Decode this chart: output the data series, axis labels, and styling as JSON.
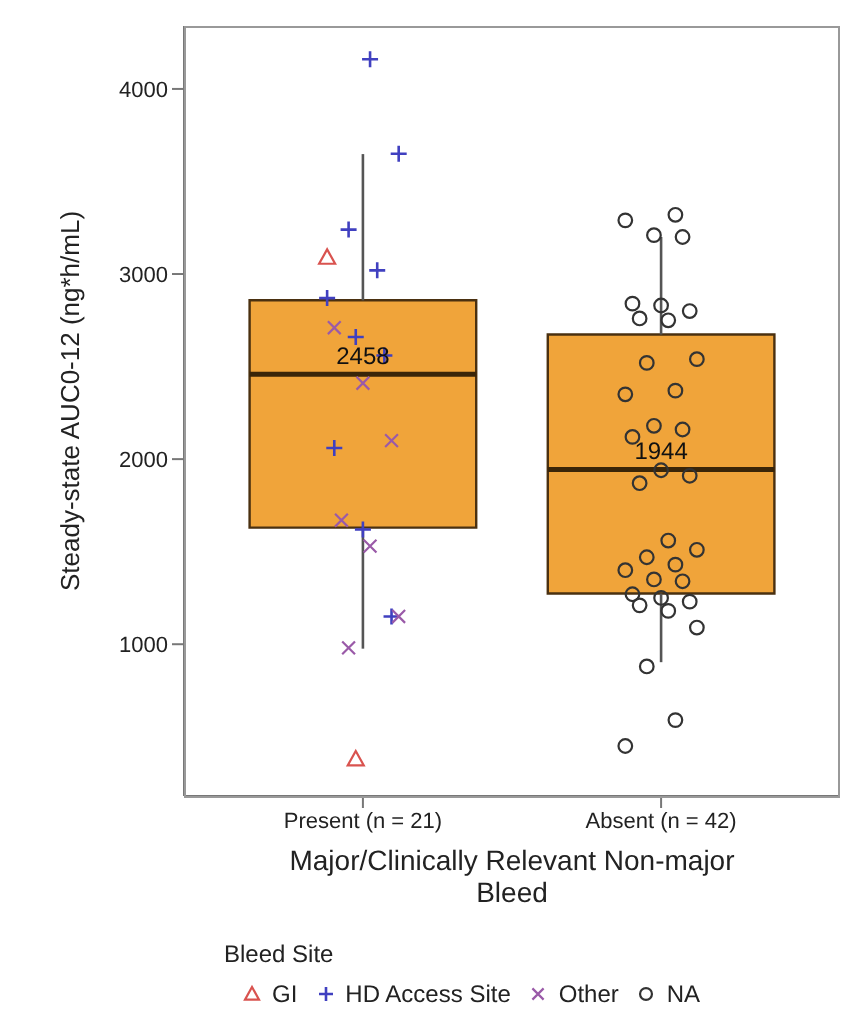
{
  "chart_data": {
    "type": "box",
    "xlabel": "Major/Clinically Relevant Non-major Bleed",
    "ylabel": "Steady-state AUC0-12 (ng*h/mL)",
    "legend_title": "Bleed Site",
    "legend": "bottom",
    "grid": false,
    "categories": [
      "Present (n = 21)",
      "Absent (n = 42)"
    ],
    "color": "#f0a43a",
    "boxes": [
      {
        "low": 976,
        "q1": 1630,
        "median": 2458,
        "q3": 2858,
        "high": 3648
      },
      {
        "low": 903,
        "q1": 1274,
        "median": 1944,
        "q3": 2673,
        "high": 3200
      }
    ],
    "annotations": [
      {
        "text": "2458",
        "x": "Present (n = 21)",
        "y": 2458
      },
      {
        "text": "1944",
        "x": "Absent (n = 42)",
        "y": 1944
      }
    ],
    "ylim": [
      180,
      4340
    ],
    "yticks": [
      1000,
      2000,
      3000,
      4000
    ],
    "series": [
      {
        "name": "GI",
        "type": "scatter",
        "marker": "triangle",
        "color": "#d9534f",
        "x": [
          "Present (n = 21)",
          "Present (n = 21)"
        ],
        "values": [
          3090,
          380
        ]
      },
      {
        "name": "HD Access Site",
        "type": "scatter",
        "marker": "cross",
        "color": "#4040c0",
        "x": [
          "Present (n = 21)",
          "Present (n = 21)",
          "Present (n = 21)",
          "Present (n = 21)",
          "Present (n = 21)",
          "Present (n = 21)",
          "Present (n = 21)",
          "Present (n = 21)",
          "Present (n = 21)",
          "Present (n = 21)"
        ],
        "values": [
          4160,
          3650,
          3240,
          3020,
          2870,
          2660,
          2560,
          2060,
          1620,
          1150
        ]
      },
      {
        "name": "Other",
        "type": "scatter",
        "marker": "x",
        "color": "#9a5aa8",
        "x": [
          "Present (n = 21)",
          "Present (n = 21)",
          "Present (n = 21)",
          "Present (n = 21)",
          "Present (n = 21)",
          "Present (n = 21)",
          "Present (n = 21)"
        ],
        "values": [
          2710,
          2410,
          2100,
          1670,
          1530,
          1150,
          980
        ]
      },
      {
        "name": "NA",
        "type": "scatter",
        "marker": "circle",
        "color": "#333333",
        "x": [
          "Absent (n = 42)",
          "Absent (n = 42)",
          "Absent (n = 42)",
          "Absent (n = 42)",
          "Absent (n = 42)",
          "Absent (n = 42)",
          "Absent (n = 42)",
          "Absent (n = 42)",
          "Absent (n = 42)",
          "Absent (n = 42)",
          "Absent (n = 42)",
          "Absent (n = 42)",
          "Absent (n = 42)",
          "Absent (n = 42)",
          "Absent (n = 42)",
          "Absent (n = 42)",
          "Absent (n = 42)",
          "Absent (n = 42)",
          "Absent (n = 42)",
          "Absent (n = 42)",
          "Absent (n = 42)",
          "Absent (n = 42)",
          "Absent (n = 42)",
          "Absent (n = 42)",
          "Absent (n = 42)",
          "Absent (n = 42)",
          "Absent (n = 42)",
          "Absent (n = 42)",
          "Absent (n = 42)",
          "Absent (n = 42)",
          "Absent (n = 42)",
          "Absent (n = 42)",
          "Absent (n = 42)",
          "Absent (n = 42)",
          "Absent (n = 42)"
        ],
        "values": [
          3320,
          3290,
          3210,
          3200,
          2840,
          2830,
          2800,
          2760,
          2750,
          2540,
          2520,
          2370,
          2350,
          2180,
          2160,
          2120,
          1940,
          1910,
          1870,
          1560,
          1510,
          1470,
          1430,
          1400,
          1350,
          1340,
          1270,
          1250,
          1230,
          1210,
          1180,
          1090,
          880,
          590,
          450
        ]
      }
    ]
  }
}
